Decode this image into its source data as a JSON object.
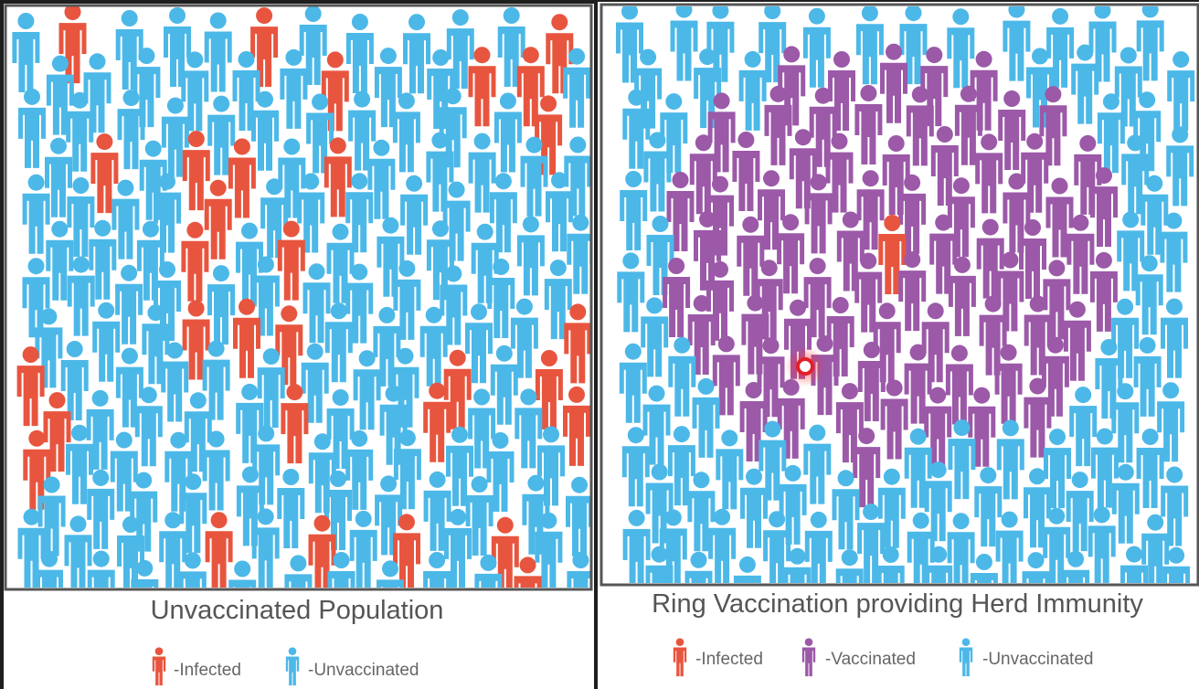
{
  "left": {
    "title": "Unvaccinated Population",
    "legend": [
      "-Infected",
      "-Unvaccinated"
    ]
  },
  "right": {
    "title": "Ring Vaccination providing Herd Immunity",
    "legend": [
      "-Infected",
      "-Vaccinated",
      "-Unvaccinated"
    ]
  }
}
